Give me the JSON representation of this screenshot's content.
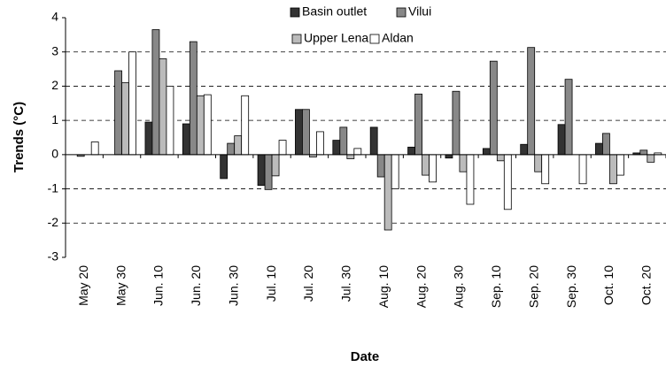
{
  "chart_data": {
    "type": "bar",
    "xlabel": "Date",
    "ylabel": "Trends (°C)",
    "categories": [
      "May 20",
      "May 30",
      "Jun. 10",
      "Jun. 20",
      "Jun. 30",
      "Jul. 10",
      "Jul. 20",
      "Jul. 30",
      "Aug. 10",
      "Aug. 20",
      "Aug. 30",
      "Sep. 10",
      "Sep. 20",
      "Sep. 30",
      "Oct. 10",
      "Oct. 20"
    ],
    "series": [
      {
        "name": "Basin outlet",
        "color": "#333333",
        "values": [
          0,
          0,
          0.95,
          0.9,
          -0.7,
          -0.9,
          1.32,
          0.42,
          0.8,
          0.22,
          -0.1,
          0.18,
          0.3,
          0.88,
          0.33,
          0.05
        ]
      },
      {
        "name": "Vilui",
        "color": "#888888",
        "values": [
          -0.05,
          2.45,
          3.65,
          3.3,
          0.33,
          -1.02,
          1.32,
          0.8,
          -0.65,
          1.77,
          1.85,
          2.73,
          3.13,
          2.2,
          0.62,
          0.13
        ]
      },
      {
        "name": "Upper Lena",
        "color": "#bbbbbb",
        "values": [
          0,
          2.1,
          2.8,
          1.72,
          0.55,
          -0.62,
          -0.07,
          -0.12,
          -2.2,
          -0.6,
          -0.5,
          -0.18,
          -0.5,
          0,
          -0.85,
          -0.22
        ]
      },
      {
        "name": "Aldan",
        "color": "#ffffff",
        "values": [
          0.37,
          3.0,
          2.0,
          1.75,
          1.72,
          0.42,
          0.67,
          0.18,
          -1.0,
          -0.8,
          -1.45,
          -1.6,
          -0.85,
          -0.85,
          -0.6,
          0.05
        ]
      }
    ],
    "ylim": [
      -3,
      4
    ],
    "yticks": [
      -3,
      -2,
      -1,
      0,
      1,
      2,
      3,
      4
    ],
    "grid": true
  }
}
